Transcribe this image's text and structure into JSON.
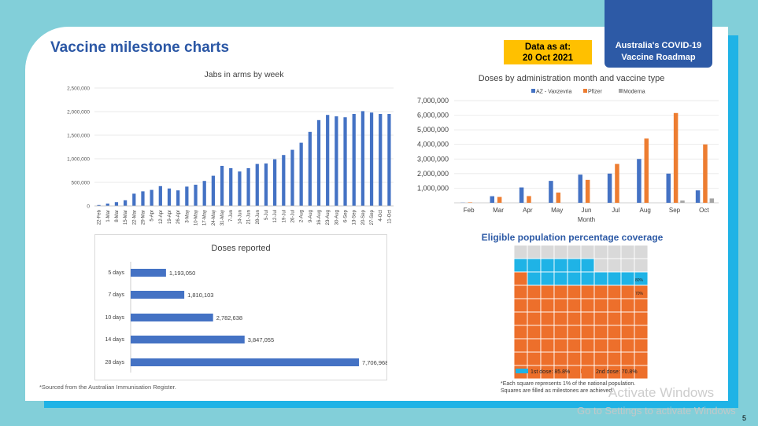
{
  "slide": {
    "title": "Vaccine milestone charts",
    "date_line1": "Data as at:",
    "date_line2": "20 Oct 2021",
    "roadmap_line1": "Australia's COVID-19",
    "roadmap_line2": "Vaccine Roadmap",
    "footnote": "*Sourced from the Australian Immunisation Register.",
    "waffle_note_line1": "*Each square represents 1% of the national population.",
    "waffle_note_line2": "Squares are filled as milestones are achieved.",
    "watermark_line1": "Activate Windows",
    "watermark_line2": "Go to Settings to activate Windows",
    "page_number": "5"
  },
  "chart_data": [
    {
      "type": "bar",
      "title": "Jabs in arms by week",
      "categories": [
        "22-Feb",
        "1-Mar",
        "8-Mar",
        "15-Mar",
        "22-Mar",
        "29-Mar",
        "5-Apr",
        "12-Apr",
        "19-Apr",
        "26-Apr",
        "3-May",
        "10-May",
        "17-May",
        "24-May",
        "31-May",
        "7-Jun",
        "14-Jun",
        "21-Jun",
        "28-Jun",
        "5-Jul",
        "12-Jul",
        "19-Jul",
        "26-Jul",
        "2-Aug",
        "9-Aug",
        "16-Aug",
        "23-Aug",
        "30-Aug",
        "6-Sep",
        "13-Sep",
        "20-Sep",
        "27-Sep",
        "4-Oct",
        "11-Oct"
      ],
      "values": [
        20000,
        50000,
        80000,
        120000,
        260000,
        310000,
        340000,
        420000,
        370000,
        330000,
        410000,
        450000,
        530000,
        640000,
        850000,
        800000,
        730000,
        800000,
        890000,
        900000,
        990000,
        1080000,
        1190000,
        1340000,
        1570000,
        1820000,
        1930000,
        1900000,
        1880000,
        1950000,
        2010000,
        1980000,
        1950000,
        1950000
      ],
      "yticks": [
        "0",
        "500,000",
        "1,000,000",
        "1,500,000",
        "2,000,000",
        "2,500,000"
      ],
      "ylim": [
        0,
        2500000
      ],
      "color": "#4472c4"
    },
    {
      "type": "bar",
      "title": "Doses reported",
      "orientation": "horizontal",
      "categories": [
        "5 days",
        "7 days",
        "10 days",
        "14 days",
        "28 days"
      ],
      "values": [
        1193050,
        1810103,
        2782638,
        3847055,
        7706968
      ],
      "labels": [
        "1,193,050",
        "1,810,103",
        "2,782,638",
        "3,847,055",
        "7,706,968"
      ],
      "color": "#4472c4"
    },
    {
      "type": "bar",
      "title": "Doses by administration month and vaccine type",
      "xlabel": "Month",
      "categories": [
        "Feb",
        "Mar",
        "Apr",
        "May",
        "Jun",
        "Jul",
        "Aug",
        "Sep",
        "Oct"
      ],
      "series": [
        {
          "name": "AZ - Vaxzevria",
          "color": "#4472c4",
          "values": [
            10000,
            450000,
            1050000,
            1500000,
            1930000,
            2000000,
            3000000,
            2000000,
            850000
          ]
        },
        {
          "name": "Pfizer",
          "color": "#ed7d31",
          "values": [
            30000,
            400000,
            460000,
            700000,
            1570000,
            2660000,
            4400000,
            6150000,
            4000000
          ]
        },
        {
          "name": "Moderna",
          "color": "#a5a5a5",
          "values": [
            0,
            0,
            0,
            0,
            0,
            0,
            0,
            150000,
            300000
          ]
        }
      ],
      "yticks": [
        "1,000,000",
        "2,000,000",
        "3,000,000",
        "4,000,000",
        "5,000,000",
        "6,000,000",
        "7,000,000"
      ],
      "ylim": [
        0,
        7000000
      ],
      "legend": "top"
    },
    {
      "type": "heatmap",
      "title": "Eligible population percentage coverage",
      "grid": "10x10",
      "first_dose_pct": 85.8,
      "second_dose_pct": 70.8,
      "colors": {
        "first_dose": "#1fb3e6",
        "second_dose": "#ed6f2b",
        "empty": "#d9d9d9"
      },
      "markers": [
        "80%",
        "70%"
      ],
      "legend": [
        {
          "label": "1st dose: 85.8%",
          "color": "#1fb3e6"
        },
        {
          "label": "2nd dose: 70.8%",
          "color": "#ed6f2b"
        }
      ]
    }
  ]
}
